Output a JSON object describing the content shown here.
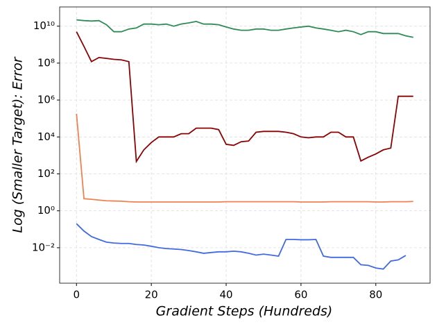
{
  "chart_data": {
    "type": "line",
    "x_label": "Gradient Steps (Hundreds)",
    "y_label": "Log (Smaller Target): Error",
    "x": [
      0,
      2,
      4,
      6,
      8,
      10,
      12,
      14,
      16,
      18,
      20,
      22,
      24,
      26,
      28,
      30,
      32,
      34,
      36,
      38,
      40,
      42,
      44,
      46,
      48,
      50,
      52,
      54,
      56,
      58,
      60,
      62,
      64,
      66,
      68,
      70,
      72,
      74,
      76,
      78,
      80,
      82,
      84,
      86,
      88,
      90
    ],
    "series": [
      {
        "color": "#2e8b57",
        "values": [
          22000000000.0,
          20000000000.0,
          19000000000.0,
          20000000000.0,
          12000000000.0,
          5000000000.0,
          5000000000.0,
          7000000000.0,
          8000000000.0,
          13000000000.0,
          13000000000.0,
          12000000000.0,
          13000000000.0,
          10000000000.0,
          13000000000.0,
          15000000000.0,
          18000000000.0,
          13000000000.0,
          13000000000.0,
          12000000000.0,
          9000000000.0,
          7000000000.0,
          6000000000.0,
          6000000000.0,
          7000000000.0,
          7000000000.0,
          6000000000.0,
          6000000000.0,
          7000000000.0,
          8000000000.0,
          9000000000.0,
          10000000000.0,
          8000000000.0,
          7000000000.0,
          6000000000.0,
          5000000000.0,
          6000000000.0,
          5000000000.0,
          3500000000.0,
          5000000000.0,
          5000000000.0,
          4000000000.0,
          4000000000.0,
          4000000000.0,
          3000000000.0,
          2500000000.0
        ]
      },
      {
        "color": "#8b0000",
        "values": [
          5000000000.0,
          800000000.0,
          120000000.0,
          200000000.0,
          180000000.0,
          160000000.0,
          150000000.0,
          120000000.0,
          470,
          2000,
          5000,
          10000,
          10000,
          10000,
          15000,
          15000,
          30000,
          30000,
          30000,
          25000,
          4000,
          3500,
          5500,
          6000,
          18000,
          20000,
          20000,
          20000,
          18000,
          15000,
          10000,
          9000,
          10000,
          10000,
          18000,
          18000,
          10000,
          10000,
          500,
          800,
          1200,
          2000,
          2500,
          1600000,
          1600000,
          1600000
        ]
      },
      {
        "color": "#f08050",
        "values": [
          180000,
          4.5,
          4.2,
          3.8,
          3.5,
          3.4,
          3.3,
          3.1,
          3.0,
          3.0,
          3.0,
          3.0,
          3.0,
          3.0,
          3.0,
          3.0,
          3.0,
          3.0,
          3.0,
          3.0,
          3.1,
          3.1,
          3.1,
          3.1,
          3.1,
          3.1,
          3.1,
          3.1,
          3.1,
          3.1,
          3.0,
          3.0,
          3.0,
          3.0,
          3.1,
          3.1,
          3.1,
          3.1,
          3.1,
          3.1,
          3.0,
          3.0,
          3.1,
          3.1,
          3.1,
          3.2
        ]
      },
      {
        "color": "#4169e1",
        "values": [
          0.2,
          0.08,
          0.04,
          0.028,
          0.02,
          0.018,
          0.017,
          0.017,
          0.015,
          0.014,
          0.012,
          0.01,
          0.009,
          0.0085,
          0.008,
          0.007,
          0.006,
          0.005,
          0.0055,
          0.006,
          0.006,
          0.0065,
          0.006,
          0.005,
          0.004,
          0.0045,
          0.004,
          0.0035,
          0.028,
          0.028,
          0.027,
          0.027,
          0.028,
          0.0035,
          0.003,
          0.003,
          0.003,
          0.003,
          0.0012,
          0.0011,
          0.0008,
          0.0007,
          0.0019,
          0.0022,
          0.0038,
          null
        ]
      }
    ],
    "xlim": [
      -4.5,
      94.5
    ],
    "xticks": [
      0,
      20,
      40,
      60,
      80
    ],
    "ylim": [
      0.00012,
      110000000000.0
    ],
    "log_y": true,
    "grid": true,
    "yticks": [
      {
        "value": 0.01,
        "label": "10⁻²"
      },
      {
        "value": 1,
        "label": "10⁰"
      },
      {
        "value": 100,
        "label": "10²"
      },
      {
        "value": 10000,
        "label": "10⁴"
      },
      {
        "value": 1000000,
        "label": "10⁶"
      },
      {
        "value": 100000000,
        "label": "10⁸"
      },
      {
        "value": 10000000000,
        "label": "10¹⁰"
      }
    ]
  }
}
